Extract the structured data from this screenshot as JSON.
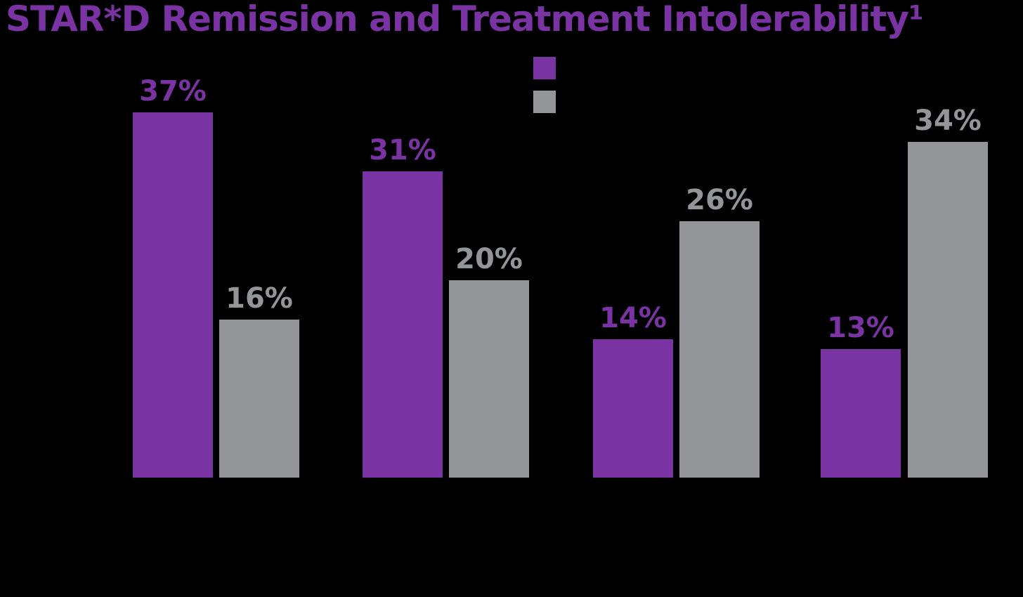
{
  "header": {
    "title": "STAR*D Remission and Treatment Intolerability¹"
  },
  "colors": {
    "background": "#000000",
    "title": "#7A33A3",
    "purple": "#7A33A3",
    "gray": "#939598"
  },
  "legend": {
    "position": "top-center",
    "labels_visible": false,
    "swatches": [
      {
        "name": "purple-swatch",
        "color": "#7A33A3"
      },
      {
        "name": "gray-swatch",
        "color": "#939598"
      }
    ]
  },
  "chart_data": {
    "type": "bar",
    "title": "STAR*D Remission and Treatment Intolerability¹",
    "xlabel": "",
    "ylabel": "",
    "ylim": [
      0,
      40
    ],
    "unit": "%",
    "group_count": 4,
    "series": [
      {
        "name": "purple_series",
        "color": "#7A33A3",
        "values": [
          37,
          31,
          14,
          13
        ],
        "labels": [
          "37%",
          "31%",
          "14%",
          "13%"
        ]
      },
      {
        "name": "gray_series",
        "color": "#939598",
        "values": [
          16,
          20,
          26,
          34
        ],
        "labels": [
          "16%",
          "20%",
          "26%",
          "34%"
        ]
      }
    ],
    "value_labels_shown": true,
    "axes_visible": false,
    "gridlines": false,
    "category_labels_visible": false,
    "legend_labels_visible": false,
    "legend_position": "top-center",
    "background": "#000000"
  }
}
